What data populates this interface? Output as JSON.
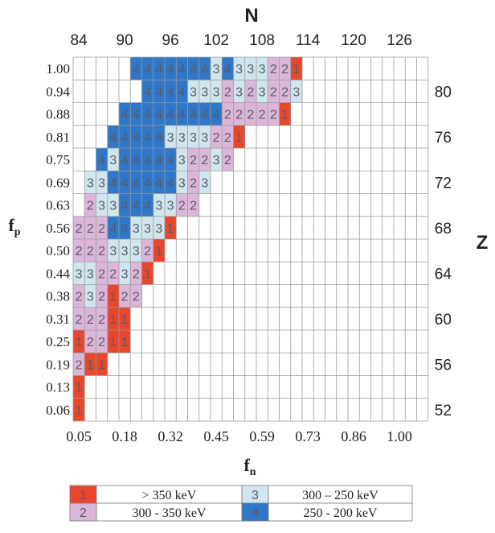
{
  "chart_data": {
    "type": "heatmap",
    "top_axis_label": "N",
    "right_axis_label": "Z",
    "xlabel": "f",
    "xlabel_sub": "n",
    "ylabel": "f",
    "ylabel_sub": "p",
    "top_ticks": [
      "84",
      "90",
      "96",
      "102",
      "108",
      "114",
      "120",
      "126"
    ],
    "bottom_ticks": [
      "0.05",
      "0.18",
      "0.32",
      "0.45",
      "0.59",
      "0.73",
      "0.86",
      "1.00"
    ],
    "right_ticks": [
      "80",
      "76",
      "72",
      "68",
      "64",
      "60",
      "56",
      "52"
    ],
    "rows": [
      {
        "fp": "1.00",
        "start": 5,
        "values": [
          4,
          4,
          4,
          4,
          4,
          4,
          4,
          3,
          4,
          3,
          3,
          3,
          2,
          2,
          1
        ]
      },
      {
        "fp": "0.94",
        "start": 6,
        "values": [
          4,
          4,
          4,
          4,
          3,
          3,
          3,
          2,
          3,
          2,
          3,
          2,
          2,
          3
        ]
      },
      {
        "fp": "0.88",
        "start": 4,
        "values": [
          4,
          4,
          4,
          4,
          4,
          4,
          4,
          4,
          4,
          2,
          2,
          2,
          2,
          2,
          1
        ]
      },
      {
        "fp": "0.81",
        "start": 3,
        "values": [
          4,
          4,
          4,
          4,
          4,
          3,
          3,
          3,
          3,
          2,
          2,
          1
        ]
      },
      {
        "fp": "0.75",
        "start": 2,
        "values": [
          4,
          3,
          4,
          4,
          4,
          4,
          4,
          3,
          2,
          2,
          3,
          2
        ]
      },
      {
        "fp": "0.69",
        "start": 1,
        "values": [
          3,
          3,
          4,
          4,
          4,
          4,
          4,
          4,
          3,
          2,
          3
        ]
      },
      {
        "fp": "0.63",
        "start": 1,
        "values": [
          2,
          3,
          3,
          4,
          4,
          4,
          3,
          3,
          2,
          2
        ]
      },
      {
        "fp": "0.56",
        "start": 0,
        "values": [
          2,
          2,
          2,
          4,
          4,
          3,
          3,
          3,
          1
        ]
      },
      {
        "fp": "0.50",
        "start": 0,
        "values": [
          2,
          2,
          2,
          3,
          3,
          3,
          2,
          1
        ]
      },
      {
        "fp": "0.44",
        "start": 0,
        "values": [
          3,
          3,
          2,
          2,
          3,
          2,
          1
        ]
      },
      {
        "fp": "0.38",
        "start": 0,
        "values": [
          2,
          3,
          2,
          1,
          2,
          2
        ]
      },
      {
        "fp": "0.31",
        "start": 0,
        "values": [
          2,
          2,
          2,
          1,
          1
        ]
      },
      {
        "fp": "0.25",
        "start": 0,
        "values": [
          1,
          2,
          2,
          1,
          1
        ]
      },
      {
        "fp": "0.19",
        "start": 0,
        "values": [
          2,
          1,
          1
        ]
      },
      {
        "fp": "0.13",
        "start": 0,
        "values": [
          1
        ]
      },
      {
        "fp": "0.06",
        "start": 0,
        "values": [
          1
        ]
      }
    ],
    "legend": [
      {
        "value": "1",
        "label": "> 350 keV"
      },
      {
        "value": "3",
        "label": "300 – 250 keV"
      },
      {
        "value": "2",
        "label": "300 - 350 keV"
      },
      {
        "value": "4",
        "label": "250 - 200 keV"
      }
    ],
    "colors": {
      "1": "#e8472b",
      "2": "#dcb6d9",
      "3": "#cfe6ee",
      "4": "#2f77c9",
      "text": "#5a5a66",
      "grid": "#9a9a9a"
    }
  }
}
